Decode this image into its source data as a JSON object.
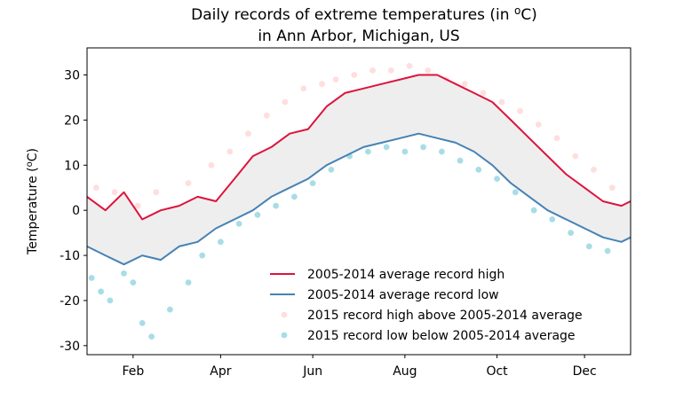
{
  "chart_data": {
    "type": "line",
    "title_line1": "Daily records of extreme temperatures (in ",
    "title_unit_sup": "o",
    "title_unit_rest": "C)",
    "title_line2": "in Ann Arbor, Michigan, US",
    "ylabel_prefix": "Temperature (",
    "ylabel_sup": "o",
    "ylabel_suffix": "C)",
    "xlim": [
      0,
      365
    ],
    "ylim": [
      -32,
      36
    ],
    "xticks": [
      {
        "label": "Feb",
        "day": 10
      },
      {
        "label": "Apr",
        "day": 29
      },
      {
        "label": "Jun",
        "day": 49
      },
      {
        "label": "Aug",
        "day": 69
      },
      {
        "label": "Oct",
        "day": 89
      },
      {
        "label": "Dec",
        "day": 108
      }
    ],
    "yticks": [
      -30,
      -20,
      -10,
      0,
      10,
      20,
      30
    ],
    "colors": {
      "high": "#dc143c",
      "low": "#4682b4",
      "band": "#eeeeee",
      "high_points": "#ffdede",
      "low_points": "#a8dde6"
    },
    "series": [
      {
        "name": "2005-2014 average record high",
        "x": [
          0,
          4,
          8,
          12,
          16,
          20,
          24,
          28,
          32,
          36,
          40,
          44,
          48,
          52,
          56,
          60,
          64,
          68,
          72,
          76,
          80,
          84,
          88,
          92,
          96,
          100,
          104,
          108,
          112,
          116,
          118
        ],
        "values": [
          3,
          0,
          4,
          -2,
          0,
          1,
          3,
          2,
          7,
          12,
          14,
          17,
          18,
          23,
          26,
          27,
          28,
          29,
          30,
          30,
          28,
          26,
          24,
          20,
          16,
          12,
          8,
          5,
          2,
          1,
          2
        ]
      },
      {
        "name": "2005-2014 average record low",
        "x": [
          0,
          4,
          8,
          12,
          16,
          20,
          24,
          28,
          32,
          36,
          40,
          44,
          48,
          52,
          56,
          60,
          64,
          68,
          72,
          76,
          80,
          84,
          88,
          92,
          96,
          100,
          104,
          108,
          112,
          116,
          118
        ],
        "values": [
          -8,
          -10,
          -12,
          -10,
          -11,
          -8,
          -7,
          -4,
          -2,
          0,
          3,
          5,
          7,
          10,
          12,
          14,
          15,
          16,
          17,
          16,
          15,
          13,
          10,
          6,
          3,
          0,
          -2,
          -4,
          -6,
          -7,
          -6
        ]
      },
      {
        "name": "2015 record high above 2005-2014 average",
        "x": [
          2,
          6,
          11,
          15,
          22,
          27,
          31,
          35,
          39,
          43,
          47,
          51,
          54,
          58,
          62,
          66,
          70,
          74,
          78,
          82,
          86,
          90,
          94,
          98,
          102,
          106,
          110,
          114
        ],
        "values": [
          5,
          4,
          1,
          4,
          6,
          10,
          13,
          17,
          21,
          24,
          27,
          28,
          29,
          30,
          31,
          31,
          32,
          31,
          29,
          28,
          26,
          24,
          22,
          19,
          16,
          12,
          9,
          5
        ]
      },
      {
        "name": "2015 record low below 2005-2014 average",
        "x": [
          1,
          3,
          5,
          8,
          10,
          12,
          14,
          18,
          22,
          25,
          29,
          33,
          37,
          41,
          45,
          49,
          53,
          57,
          61,
          65,
          69,
          73,
          77,
          81,
          85,
          89,
          93,
          97,
          101,
          105,
          109,
          113
        ],
        "values": [
          -15,
          -18,
          -20,
          -14,
          -16,
          -25,
          -28,
          -22,
          -16,
          -10,
          -7,
          -3,
          -1,
          1,
          3,
          6,
          9,
          12,
          13,
          14,
          13,
          14,
          13,
          11,
          9,
          7,
          4,
          0,
          -2,
          -5,
          -8,
          -9
        ]
      }
    ],
    "legend_position": "lower-right",
    "grid": false
  }
}
